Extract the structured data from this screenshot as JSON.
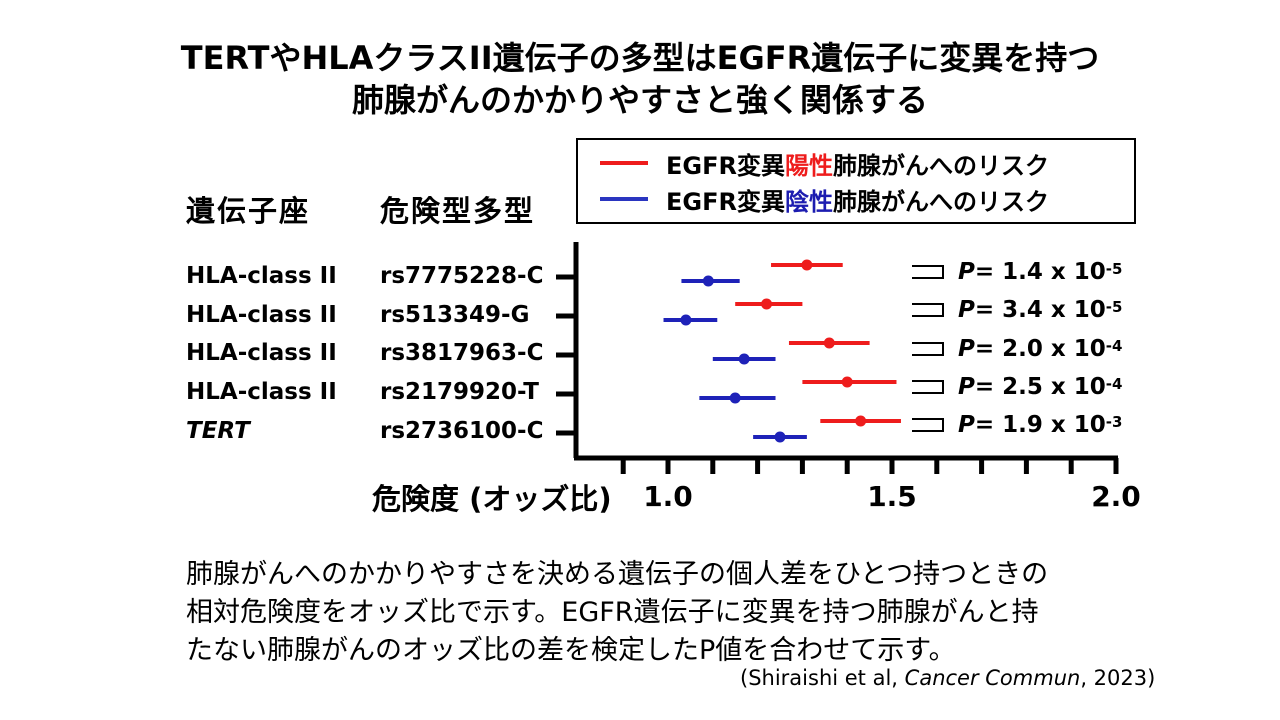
{
  "title": {
    "line1": "TERTやHLAクラスII遺伝子の多型はEGFR遺伝子に変異を持つ",
    "line2": "肺腺がんのかかりやすさと強く関係する"
  },
  "legend": {
    "positive": {
      "prefix": "EGFR変異",
      "highlight": "陽性",
      "suffix": "肺腺がんへのリスク",
      "color": "#ee1c1c"
    },
    "negative": {
      "prefix": "EGFR変異",
      "highlight": "陰性",
      "suffix": "肺腺がんへのリスク",
      "color": "#1c1cb0"
    }
  },
  "headers": {
    "locus": "遺伝子座",
    "allele": "危険型多型"
  },
  "rows": [
    {
      "locus": "HLA-class II",
      "allele": "rs7775228-C",
      "p_prefix": "P",
      "p_value": " = 1.4 x 10",
      "p_exp": "-5"
    },
    {
      "locus": "HLA-class II",
      "allele": "rs513349-G",
      "p_prefix": "P",
      "p_value": " = 3.4 x 10",
      "p_exp": "-5"
    },
    {
      "locus": "HLA-class II",
      "allele": "rs3817963-C",
      "p_prefix": "P",
      "p_value": " = 2.0 x 10",
      "p_exp": "-4"
    },
    {
      "locus": "HLA-class II",
      "allele": "rs2179920-T",
      "p_prefix": "P",
      "p_value": " = 2.5 x 10",
      "p_exp": "-4"
    },
    {
      "locus": "TERT",
      "allele": "rs2736100-C",
      "p_prefix": "P",
      "p_value": " = 1.9 x 10",
      "p_exp": "-3"
    }
  ],
  "xlabel": "危険度 (オッズ比)",
  "chart_data": {
    "type": "scatter",
    "xlim": [
      0.9,
      2.0
    ],
    "x_ticks": [
      "1.0",
      "1.5",
      "2.0"
    ],
    "x_tick_values": [
      1.0,
      1.5,
      2.0
    ],
    "categories": [
      "rs7775228-C",
      "rs513349-G",
      "rs3817963-C",
      "rs2179920-T",
      "rs2736100-C"
    ],
    "series": [
      {
        "name": "EGFR変異陽性肺腺がんへのリスク",
        "color": "#ee1c1c",
        "or": [
          1.31,
          1.22,
          1.36,
          1.4,
          1.43
        ],
        "ci_low": [
          1.23,
          1.15,
          1.27,
          1.3,
          1.34
        ],
        "ci_high": [
          1.39,
          1.3,
          1.45,
          1.51,
          1.52
        ]
      },
      {
        "name": "EGFR変異陰性肺腺がんへのリスク",
        "color": "#1c1cb0",
        "or": [
          1.09,
          1.04,
          1.17,
          1.15,
          1.25
        ],
        "ci_low": [
          1.03,
          0.99,
          1.1,
          1.07,
          1.19
        ],
        "ci_high": [
          1.16,
          1.11,
          1.24,
          1.24,
          1.31
        ]
      }
    ]
  },
  "caption": {
    "line1": "肺腺がんへのかかりやすさを決める遺伝子の個人差をひとつ持つときの",
    "line2": "相対危険度をオッズ比で示す。EGFR遺伝子に変異を持つ肺腺がんと持",
    "line3": "たない肺腺がんのオッズ比の差を検定したP値を合わせて示す。"
  },
  "citation": {
    "prefix": "(Shiraishi et al, ",
    "journal": "Cancer Commun",
    "suffix": ", 2023)"
  }
}
